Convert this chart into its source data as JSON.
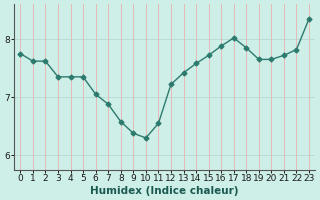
{
  "x": [
    0,
    1,
    2,
    3,
    4,
    5,
    6,
    7,
    8,
    9,
    10,
    11,
    12,
    13,
    14,
    15,
    16,
    17,
    18,
    19,
    20,
    21,
    22,
    23
  ],
  "y": [
    7.75,
    7.62,
    7.62,
    7.35,
    7.35,
    7.35,
    7.05,
    6.88,
    6.58,
    6.38,
    6.3,
    6.55,
    7.22,
    7.42,
    7.58,
    7.72,
    7.88,
    8.02,
    7.85,
    7.65,
    7.65,
    7.72,
    7.82,
    8.35
  ],
  "line_color": "#2d7b6e",
  "marker": "D",
  "marker_size": 2.5,
  "bg_color": "#ceeee8",
  "grid_color_v": "#e8b8b8",
  "grid_color_h": "#b8dcd8",
  "axis_bg": "#ceeee8",
  "xlabel": "Humidex (Indice chaleur)",
  "ylabel": "",
  "ylim": [
    5.75,
    8.6
  ],
  "xlim": [
    -0.5,
    23.5
  ],
  "yticks": [
    6,
    7,
    8
  ],
  "xtick_labels": [
    "0",
    "1",
    "2",
    "3",
    "4",
    "5",
    "6",
    "7",
    "8",
    "9",
    "10",
    "11",
    "12",
    "13",
    "14",
    "15",
    "16",
    "17",
    "18",
    "19",
    "20",
    "21",
    "22",
    "23"
  ],
  "xlabel_fontsize": 7.5,
  "tick_fontsize": 6.5,
  "line_width": 1.0,
  "spine_color": "#555555"
}
